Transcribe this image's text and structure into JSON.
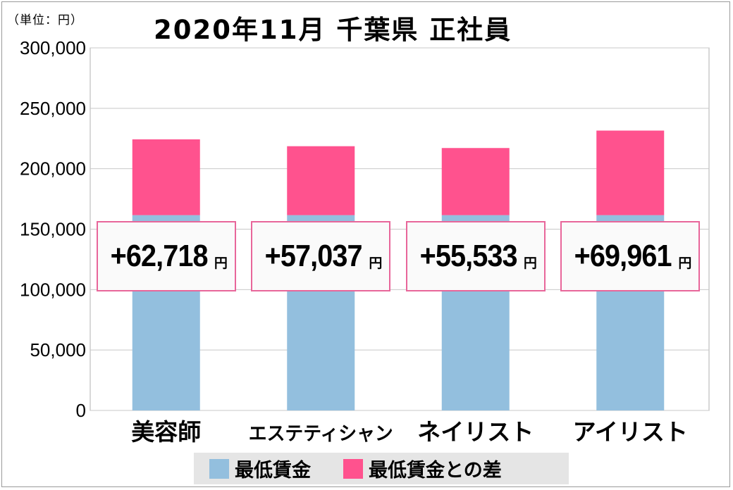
{
  "unit_label": "（単位：円）",
  "title": "2020年11月  千葉県  正社員",
  "colors": {
    "base": "#93bfde",
    "diff": "#ff528e",
    "box_border": "#e8669a",
    "grid": "#c8c8c8"
  },
  "chart_data": {
    "type": "bar",
    "stacked": true,
    "categories": [
      "美容師",
      "エステティシャン",
      "ネイリスト",
      "アイリスト"
    ],
    "series": [
      {
        "name": "最低賃金",
        "values": [
          161600,
          161600,
          161600,
          161600
        ]
      },
      {
        "name": "最低賃金との差",
        "values": [
          62718,
          57037,
          55533,
          69961
        ]
      }
    ],
    "diff_labels": [
      "+62,718",
      "+57,037",
      "+55,533",
      "+69,961"
    ],
    "diff_unit": "円",
    "yticks": [
      "0",
      "50,000",
      "100,000",
      "150,000",
      "200,000",
      "250,000",
      "300,000"
    ],
    "ylim": [
      0,
      300000
    ],
    "grid": true,
    "legend_position": "bottom"
  }
}
